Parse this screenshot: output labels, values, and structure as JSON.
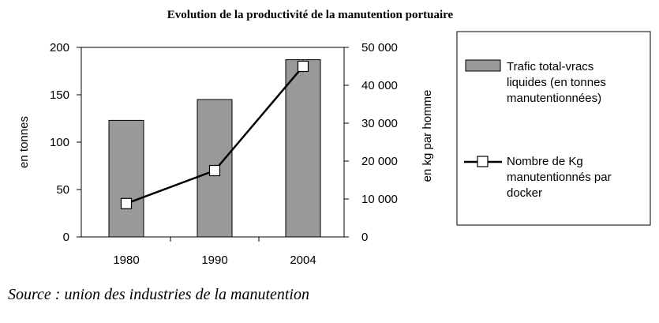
{
  "chart_data": {
    "type": "bar",
    "title": "Evolution de la productivité de la manutention portuaire",
    "categories": [
      "1980",
      "1990",
      "2004"
    ],
    "ylabel": "en tonnes",
    "ylim": [
      0,
      200
    ],
    "yticks": [
      "0",
      "50",
      "100",
      "150",
      "200"
    ],
    "y2label": "en kg par homme",
    "y2lim": [
      0,
      50000
    ],
    "y2ticks": [
      "0",
      "10 000",
      "20 000",
      "30 000",
      "40 000",
      "50 000"
    ],
    "series": [
      {
        "name": "Trafic total-vracs liquides (en tonnes manutentionnées)",
        "legend_lines": [
          "Trafic total-vracs",
          "liquides (en tonnes",
          "manutentionnées)"
        ],
        "type": "bar",
        "axis": "left",
        "color": "#999999",
        "values": [
          123,
          145,
          187
        ]
      },
      {
        "name": "Nombre de Kg manutentionnés par docker",
        "legend_lines": [
          "Nombre de Kg",
          "manutentionnés par",
          "docker"
        ],
        "type": "line",
        "axis": "right",
        "color": "#000000",
        "marker": "square",
        "values": [
          8800,
          17500,
          45000
        ]
      }
    ],
    "legend_position": "right",
    "grid": false
  },
  "source": "Source : union des industries de la manutention"
}
